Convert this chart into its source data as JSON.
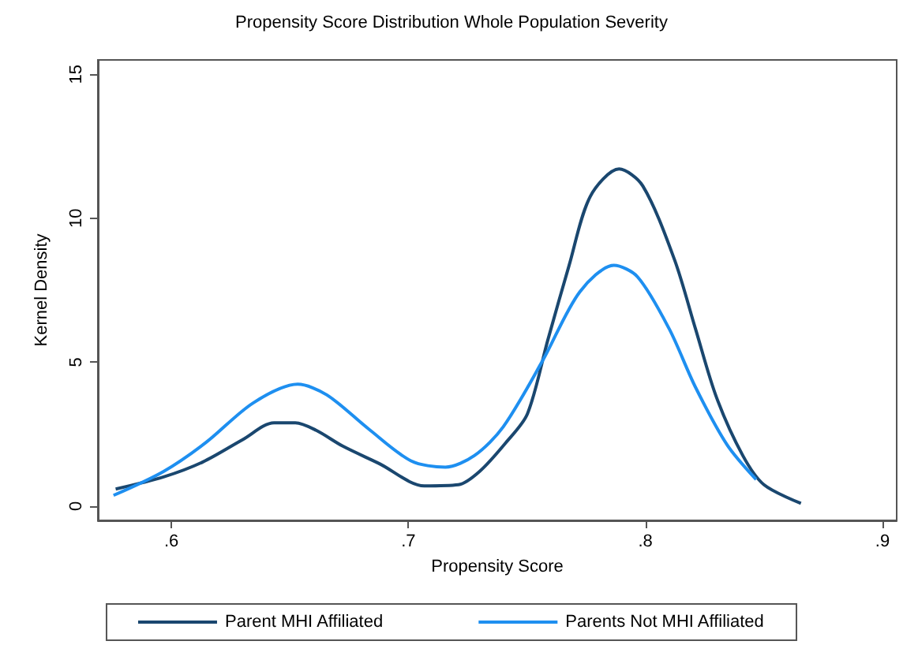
{
  "chart_data": {
    "type": "line",
    "title": "Propensity Score Distribution Whole Population Severity",
    "xlabel": "Propensity Score",
    "ylabel": "Kernel Density",
    "xlim": [
      0.569,
      0.906
    ],
    "ylim": [
      -0.5,
      15.5
    ],
    "xticks": [
      {
        "value": 0.6,
        "label": ".6"
      },
      {
        "value": 0.7,
        "label": ".7"
      },
      {
        "value": 0.8,
        "label": ".8"
      },
      {
        "value": 0.9,
        "label": ".9"
      }
    ],
    "yticks": [
      0,
      5,
      10,
      15
    ],
    "grid": false,
    "legend": "bottom",
    "marker": "none",
    "line_style": "solid",
    "series": [
      {
        "name": "Parent MHI Affiliated",
        "color": "#1a476f",
        "x": [
          0.5765,
          0.5967,
          0.6133,
          0.63,
          0.6433,
          0.6523,
          0.6611,
          0.6723,
          0.6878,
          0.7067,
          0.7211,
          0.73,
          0.7411,
          0.7502,
          0.7589,
          0.7678,
          0.7767,
          0.7889,
          0.7989,
          0.8123,
          0.8211,
          0.83,
          0.8411,
          0.85,
          0.8656
        ],
        "values": [
          0.59,
          1.01,
          1.53,
          2.3,
          2.89,
          2.89,
          2.63,
          2.08,
          1.47,
          0.7,
          0.74,
          1.2,
          2.2,
          3.2,
          5.79,
          8.36,
          10.75,
          11.71,
          11.12,
          8.55,
          6.16,
          3.77,
          1.75,
          0.74,
          0.09
        ]
      },
      {
        "name": "Parents Not MHI Affiliated",
        "color": "#1e8ff0",
        "x": [
          0.5756,
          0.5967,
          0.6145,
          0.6345,
          0.6533,
          0.6656,
          0.6833,
          0.7011,
          0.7156,
          0.7278,
          0.74,
          0.7567,
          0.7723,
          0.7867,
          0.7967,
          0.81,
          0.8211,
          0.8345,
          0.8467
        ],
        "values": [
          0.37,
          1.2,
          2.2,
          3.58,
          4.23,
          3.86,
          2.67,
          1.57,
          1.35,
          1.75,
          2.75,
          5.06,
          7.44,
          8.36,
          7.96,
          6.16,
          4.13,
          2.12,
          0.92
        ]
      }
    ]
  }
}
